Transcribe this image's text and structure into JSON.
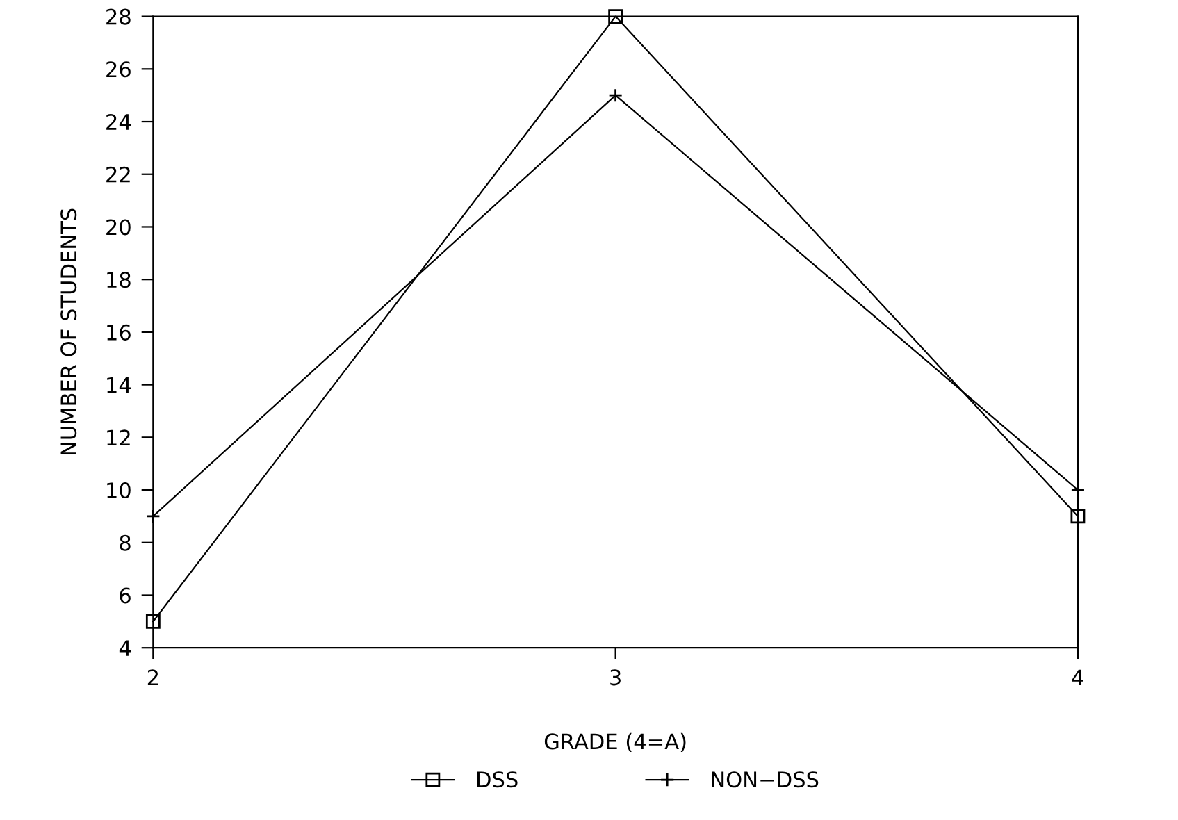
{
  "chart_data": {
    "type": "line",
    "xlabel": "GRADE (4=A)",
    "ylabel": "NUMBER OF STUDENTS",
    "x": [
      2,
      3,
      4
    ],
    "series": [
      {
        "name": "DSS",
        "color": "#000000",
        "values": [
          5,
          28,
          9
        ],
        "marker": "square"
      },
      {
        "name": "NON−DSS",
        "color": "#000000",
        "values": [
          9,
          25,
          10
        ],
        "marker": "cross"
      }
    ],
    "xlim": [
      2,
      4
    ],
    "xticks": [
      2,
      3,
      4
    ],
    "ylim": [
      4,
      28
    ],
    "yticks": [
      4,
      6,
      8,
      10,
      12,
      14,
      16,
      18,
      20,
      22,
      24,
      26,
      28
    ],
    "grid": false,
    "legend": "bottom",
    "line_style": "solid"
  }
}
